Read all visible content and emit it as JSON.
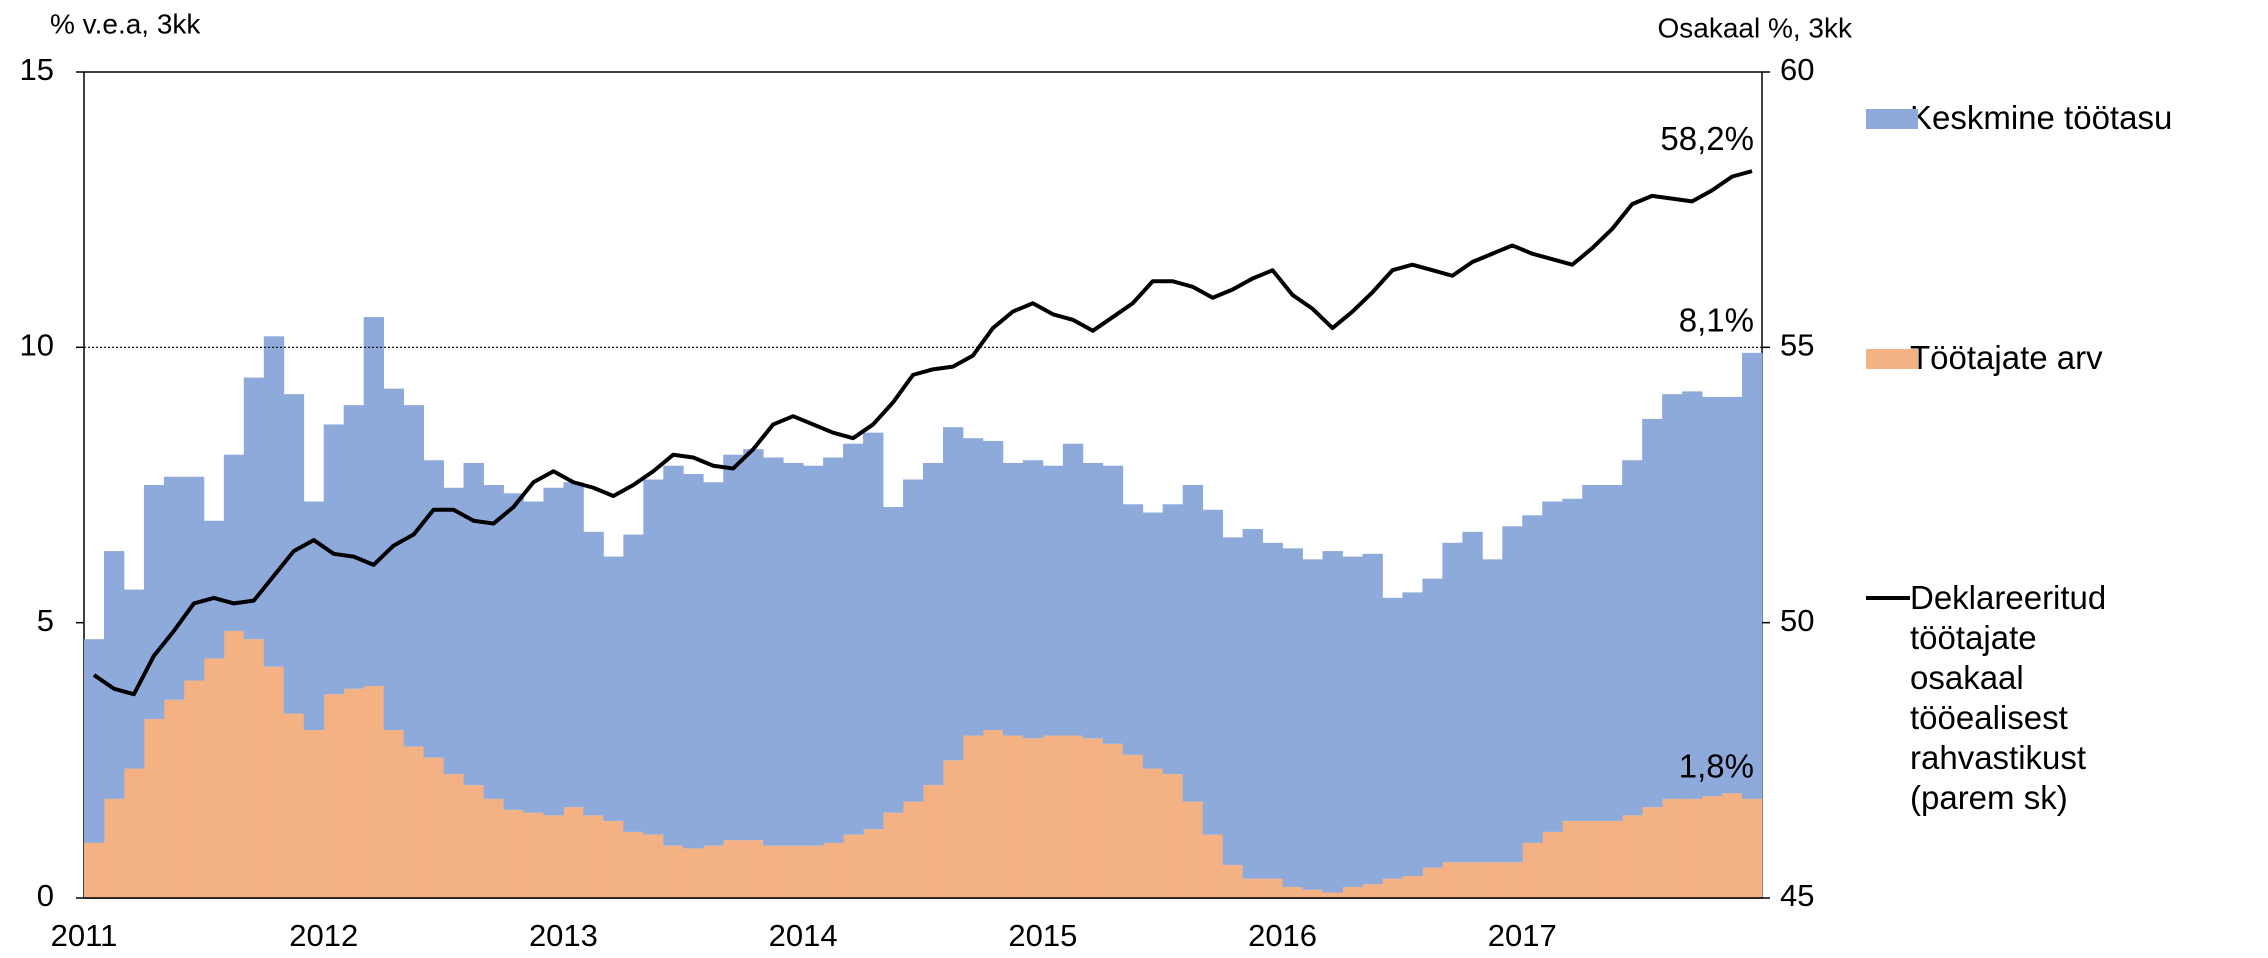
{
  "chart_data": {
    "type": "stacked-bar-line",
    "y_label": "% v.e.a, 3kk",
    "y2_label": "Osakaal %, 3kk",
    "categories": [
      "2011",
      null,
      null,
      null,
      null,
      null,
      null,
      null,
      null,
      null,
      null,
      null,
      "2012",
      null,
      null,
      null,
      null,
      null,
      null,
      null,
      null,
      null,
      null,
      null,
      "2013",
      null,
      null,
      null,
      null,
      null,
      null,
      null,
      null,
      null,
      null,
      null,
      "2014",
      null,
      null,
      null,
      null,
      null,
      null,
      null,
      null,
      null,
      null,
      null,
      "2015",
      null,
      null,
      null,
      null,
      null,
      null,
      null,
      null,
      null,
      null,
      null,
      "2016",
      null,
      null,
      null,
      null,
      null,
      null,
      null,
      null,
      null,
      null,
      null,
      "2017",
      null,
      null,
      null,
      null,
      null,
      null,
      null,
      null,
      null,
      null,
      null
    ],
    "ylim": [
      0,
      15
    ],
    "yticks": [
      0,
      5,
      10,
      15
    ],
    "y2lim": [
      45,
      60
    ],
    "y2ticks": [
      45,
      50,
      55,
      60
    ],
    "hline": 10,
    "series": [
      {
        "name": "Keskmine töötasu",
        "kind": "bar",
        "color": "#8eaadb",
        "values": [
          3.7,
          4.5,
          3.25,
          4.25,
          4.05,
          3.7,
          2.5,
          3.2,
          4.75,
          6.0,
          5.8,
          4.15,
          4.9,
          5.15,
          6.7,
          6.2,
          6.2,
          5.4,
          5.2,
          5.85,
          5.7,
          5.75,
          5.65,
          5.95,
          5.9,
          5.15,
          4.8,
          5.4,
          6.45,
          6.9,
          6.8,
          6.6,
          7.0,
          7.1,
          7.05,
          6.95,
          6.9,
          7.0,
          7.1,
          7.2,
          5.55,
          5.85,
          5.85,
          6.05,
          5.4,
          5.25,
          4.95,
          5.05,
          4.9,
          5.3,
          5.0,
          5.05,
          4.55,
          4.65,
          4.9,
          5.75,
          5.9,
          5.95,
          6.35,
          6.1,
          6.15,
          6.0,
          6.2,
          6.0,
          6.0,
          5.1,
          5.15,
          5.25,
          5.8,
          6.0,
          5.5,
          6.1,
          5.95,
          6.0,
          5.85,
          6.1,
          6.1,
          6.45,
          7.05,
          7.35,
          7.4,
          7.25,
          7.2,
          8.1
        ],
        "value_labels": [
          null,
          null,
          null,
          null,
          null,
          null,
          null,
          null,
          null,
          null,
          null,
          null,
          null,
          null,
          null,
          null,
          null,
          null,
          null,
          null,
          null,
          null,
          null,
          null,
          null,
          null,
          null,
          null,
          null,
          null,
          null,
          null,
          null,
          null,
          null,
          null,
          null,
          null,
          null,
          null,
          null,
          null,
          null,
          null,
          null,
          null,
          null,
          null,
          null,
          null,
          null,
          null,
          null,
          null,
          null,
          null,
          null,
          null,
          null,
          null,
          null,
          null,
          null,
          null,
          null,
          null,
          null,
          null,
          null,
          null,
          null,
          null,
          null,
          null,
          null,
          null,
          null,
          null,
          null,
          null,
          null,
          null,
          null,
          "8,1%"
        ]
      },
      {
        "name": "Töötajate arv",
        "kind": "bar",
        "color": "#f4b183",
        "values": [
          1.0,
          1.8,
          2.35,
          3.25,
          3.6,
          3.95,
          4.35,
          4.85,
          4.7,
          4.2,
          3.35,
          3.05,
          3.7,
          3.8,
          3.85,
          3.05,
          2.75,
          2.55,
          2.25,
          2.05,
          1.8,
          1.6,
          1.55,
          1.5,
          1.65,
          1.5,
          1.4,
          1.2,
          1.15,
          0.95,
          0.9,
          0.95,
          1.05,
          1.05,
          0.95,
          0.95,
          0.95,
          1.0,
          1.15,
          1.25,
          1.55,
          1.75,
          2.05,
          2.5,
          2.95,
          3.05,
          2.95,
          2.9,
          2.95,
          2.95,
          2.9,
          2.8,
          2.6,
          2.35,
          2.25,
          1.75,
          1.15,
          0.6,
          0.35,
          0.35,
          0.2,
          0.15,
          0.1,
          0.2,
          0.25,
          0.35,
          0.4,
          0.55,
          0.65,
          0.65,
          0.65,
          0.65,
          1.0,
          1.2,
          1.4,
          1.4,
          1.4,
          1.5,
          1.65,
          1.8,
          1.8,
          1.85,
          1.9,
          1.8
        ],
        "value_labels": [
          null,
          null,
          null,
          null,
          null,
          null,
          null,
          null,
          null,
          null,
          null,
          null,
          null,
          null,
          null,
          null,
          null,
          null,
          null,
          null,
          null,
          null,
          null,
          null,
          null,
          null,
          null,
          null,
          null,
          null,
          null,
          null,
          null,
          null,
          null,
          null,
          null,
          null,
          null,
          null,
          null,
          null,
          null,
          null,
          null,
          null,
          null,
          null,
          null,
          null,
          null,
          null,
          null,
          null,
          null,
          null,
          null,
          null,
          null,
          null,
          null,
          null,
          null,
          null,
          null,
          null,
          null,
          null,
          null,
          null,
          null,
          null,
          null,
          null,
          null,
          null,
          null,
          null,
          null,
          null,
          null,
          null,
          null,
          "1,8%"
        ]
      },
      {
        "name": "Deklareeritud töötajate osakaal tööealisest rahvastikust (parem sk)",
        "kind": "line",
        "axis": "y2",
        "color": "#000000",
        "values": [
          49.05,
          48.8,
          48.7,
          49.4,
          49.85,
          50.35,
          50.45,
          50.35,
          50.4,
          50.85,
          51.3,
          51.5,
          51.25,
          51.2,
          51.05,
          51.4,
          51.6,
          52.05,
          52.05,
          51.85,
          51.8,
          52.1,
          52.55,
          52.75,
          52.55,
          52.45,
          52.3,
          52.5,
          52.75,
          53.05,
          53.0,
          52.85,
          52.8,
          53.15,
          53.6,
          53.75,
          53.6,
          53.45,
          53.35,
          53.6,
          54.0,
          54.5,
          54.6,
          54.65,
          54.85,
          55.35,
          55.65,
          55.8,
          55.6,
          55.5,
          55.3,
          55.55,
          55.8,
          56.2,
          56.2,
          56.1,
          55.9,
          56.05,
          56.25,
          56.4,
          55.95,
          55.7,
          55.35,
          55.65,
          56.0,
          56.4,
          56.5,
          56.4,
          56.3,
          56.55,
          56.7,
          56.85,
          56.7,
          56.6,
          56.5,
          56.8,
          57.15,
          57.6,
          57.75,
          57.7,
          57.65,
          57.85,
          58.1,
          58.2
        ],
        "value_labels": [
          null,
          null,
          null,
          null,
          null,
          null,
          null,
          null,
          null,
          null,
          null,
          null,
          null,
          null,
          null,
          null,
          null,
          null,
          null,
          null,
          null,
          null,
          null,
          null,
          null,
          null,
          null,
          null,
          null,
          null,
          null,
          null,
          null,
          null,
          null,
          null,
          null,
          null,
          null,
          null,
          null,
          null,
          null,
          null,
          null,
          null,
          null,
          null,
          null,
          null,
          null,
          null,
          null,
          null,
          null,
          null,
          null,
          null,
          null,
          null,
          null,
          null,
          null,
          null,
          null,
          null,
          null,
          null,
          null,
          null,
          null,
          null,
          null,
          null,
          null,
          null,
          null,
          null,
          null,
          null,
          null,
          null,
          null,
          "58,2%"
        ]
      }
    ]
  }
}
